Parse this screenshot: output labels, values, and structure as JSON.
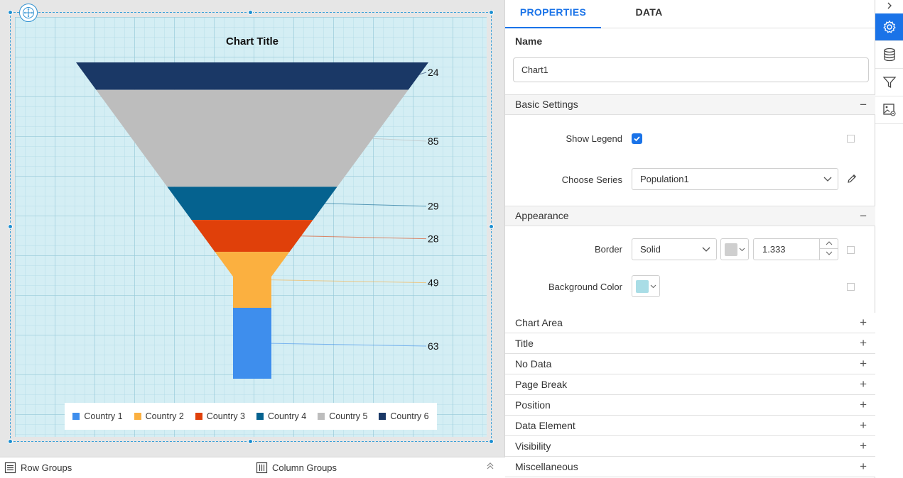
{
  "chart": {
    "title": "Chart Title",
    "legend": [
      {
        "label": "Country 1",
        "color": "#3e8eed"
      },
      {
        "label": "Country 2",
        "color": "#fbb040"
      },
      {
        "label": "Country 3",
        "color": "#e0400a"
      },
      {
        "label": "Country 4",
        "color": "#05628f"
      },
      {
        "label": "Country 5",
        "color": "#bdbdbd"
      },
      {
        "label": "Country 6",
        "color": "#1a3866"
      }
    ]
  },
  "chart_data": {
    "type": "funnel",
    "title": "Chart Title",
    "legend_position": "bottom",
    "grid": true,
    "categories": [
      "Country 6",
      "Country 5",
      "Country 4",
      "Country 3",
      "Country 2",
      "Country 1"
    ],
    "values": [
      24,
      85,
      29,
      28,
      49,
      63
    ],
    "colors": [
      "#1a3866",
      "#bdbdbd",
      "#05628f",
      "#e0400a",
      "#fbb040",
      "#3e8eed"
    ]
  },
  "footer": {
    "row_groups": "Row Groups",
    "column_groups": "Column Groups"
  },
  "tabs": {
    "properties": "PROPERTIES",
    "data": "DATA"
  },
  "properties": {
    "name_label": "Name",
    "name_value": "Chart1",
    "basic_settings": {
      "title": "Basic Settings",
      "toggle": "−",
      "show_legend_label": "Show Legend",
      "show_legend_checked": true,
      "choose_series_label": "Choose Series",
      "choose_series_value": "Population1"
    },
    "appearance": {
      "title": "Appearance",
      "toggle": "−",
      "border_label": "Border",
      "border_style": "Solid",
      "border_color": "#cfcfcf",
      "border_width": "1.333",
      "background_color_label": "Background Color",
      "background_color": "#a9dde6"
    },
    "collapsed_sections": [
      {
        "title": "Chart Area",
        "toggle": "+"
      },
      {
        "title": "Title",
        "toggle": "+"
      },
      {
        "title": "No Data",
        "toggle": "+"
      },
      {
        "title": "Page Break",
        "toggle": "+"
      },
      {
        "title": "Position",
        "toggle": "+"
      },
      {
        "title": "Data Element",
        "toggle": "+"
      },
      {
        "title": "Visibility",
        "toggle": "+"
      },
      {
        "title": "Miscellaneous",
        "toggle": "+"
      }
    ]
  },
  "rail": {
    "icons": [
      "settings-icon",
      "database-icon",
      "filter-icon",
      "image-settings-icon"
    ]
  }
}
